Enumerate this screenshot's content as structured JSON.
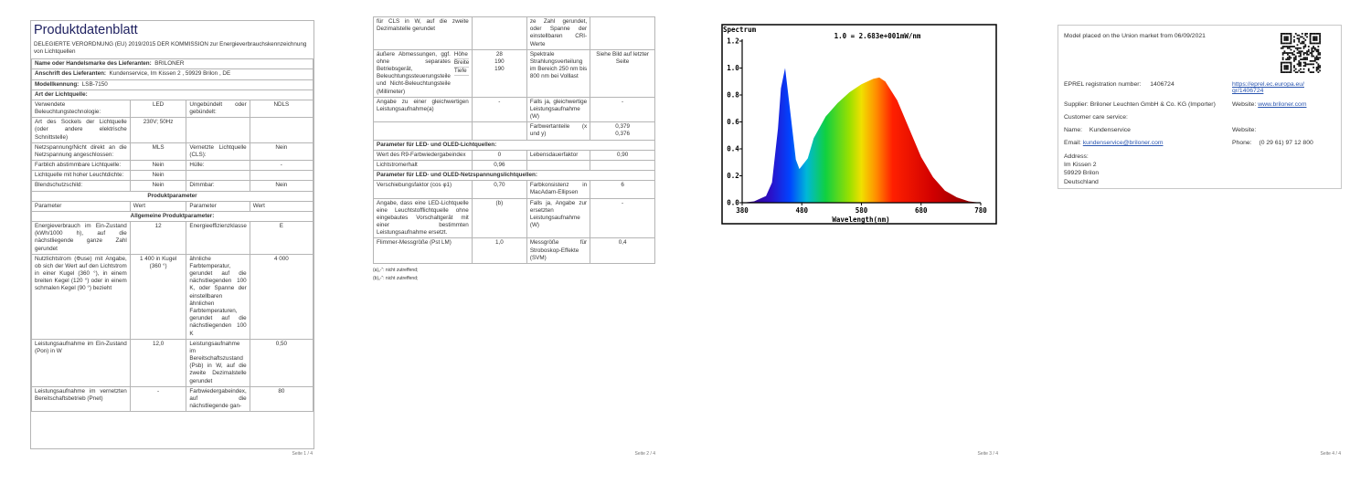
{
  "page1": {
    "title": "Produktdatenblatt",
    "subtitle": "DELEGIERTE VERORDNUNG (EU) 2019/2015 DER KOMMISSION zur Energieverbrauchskennzeichnung von Lichtquellen",
    "rows": [
      {
        "label": "Name oder Handelsmarke des Lieferanten:",
        "value": "BRILONER"
      },
      {
        "label": "Anschrift des Lieferanten:",
        "value": "Kundenservice, Im Kissen 2 , 59929 Brilon , DE"
      },
      {
        "label": "Modellkennung:",
        "value": "LSB-7150"
      },
      {
        "section": "Art der Lichtquelle:"
      },
      {
        "cells": [
          "Verwendete Beleuchtungstechnologie:",
          "LED",
          "Ungebündelt oder gebündelt:",
          "NDLS"
        ]
      },
      {
        "cells": [
          "Art des Sockels der Lichtquelle (oder andere elektrische Schnittstelle)",
          "230V; 50Hz",
          null,
          null
        ]
      },
      {
        "cells": [
          "Netzspannung/Nicht direkt an die Netzspannung angeschlossen:",
          "MLS",
          "Vernetzte Lichtquelle (CLS):",
          "Nein"
        ]
      },
      {
        "cells": [
          "Farblich abstimmbare Lichtquelle:",
          "Nein",
          "Hülle:",
          "-"
        ]
      },
      {
        "cells": [
          "Lichtquelle mit hoher Leuchtdichte:",
          "Nein",
          null,
          null
        ]
      },
      {
        "cells": [
          "Blendschutzschild:",
          "Nein",
          "Dimmbar:",
          "Nein"
        ]
      },
      {
        "heading": "Produktparameter"
      },
      {
        "plain": [
          "Parameter",
          "Wert",
          "Parameter",
          "Wert"
        ]
      },
      {
        "heading": "Allgemeine Produktparameter:"
      },
      {
        "cells": [
          "Energieverbrauch im Ein-Zustand (kWh/1000 h), auf die nächstliegende ganze Zahl gerundet",
          "12",
          "Energieeffizienzklasse",
          "E"
        ]
      },
      {
        "cells": [
          "Nutzlichtstrom (Φuse) mit Angabe, ob sich der Wert auf den Lichtstrom in einer Kugel (360 °), in einem breiten Kegel (120 °) oder in einem schmalen Kegel (90 °) bezieht",
          "1 400 in Kugel (360 °)",
          "ähnliche Farbtemperatur, gerundet auf die nächstliegenden 100 K, oder Spanne der einstellbaren ähnlichen Farbtemperaturen, gerundet auf die nächstliegenden 100 K",
          "4 000"
        ]
      },
      {
        "cells": [
          "Leistungsaufnahme im Ein-Zustand (Pon) in W",
          "12,0",
          "Leistungsaufnahme im Bereitschaftszustand (Psb) in W, auf die zweite Dezimalstelle gerundet",
          "0,50"
        ]
      },
      {
        "cells": [
          "Leistungsaufnahme im vernetzten Bereitschaftsbetrieb (Pnet)",
          "-",
          "Farbwiedergabeindex, auf die nächstliegende gan-",
          "80"
        ]
      }
    ],
    "footer": "Seite 1 / 4"
  },
  "page2": {
    "rows": [
      {
        "cells": [
          "für CLS in W, auf die zweite Dezimalstelle gerundet",
          null,
          "ze Zahl gerundet, oder Spanne der einstellbaren CRI-Werte",
          null
        ]
      },
      {
        "cells": [
          {
            "text": "äußere Abmessungen, ggf. ohne separates Betriebsgerät, Beleuchtungssteuerungsteile und Nicht-Beleuchtungsteile (Millimeter)",
            "items": [
              "Höhe",
              "Breite",
              "Tiefe"
            ]
          },
          [
            "28",
            "190",
            "190"
          ],
          "Spektrale Strahlungsverteilung im Bereich 250 nm bis 800 nm bei Volllast",
          "Siehe Bild auf letzter Seite"
        ]
      },
      {
        "cells": [
          "Angabe zu einer gleichwertigen Leistungsaufnahme(a)",
          "-",
          "Falls ja, gleichwertige Leistungsaufnahme (W)",
          "-"
        ]
      },
      {
        "cells": [
          null,
          null,
          "Farbwertanteile (x und y)",
          [
            "0,379",
            "0,376"
          ]
        ]
      },
      {
        "section": "Parameter für LED- und OLED-Lichtquellen:"
      },
      {
        "cells": [
          "Wert des R9-Farbwiedergabeindex",
          "0",
          "Lebensdauerfaktor",
          "0,90"
        ]
      },
      {
        "cells": [
          "Lichtstromerhalt",
          "0,96",
          null,
          null
        ]
      },
      {
        "section": "Parameter für LED- und OLED-Netzspannungslichtquellen:"
      },
      {
        "cells": [
          "Verschiebungsfaktor (cos φ1)",
          "0,70",
          "Farbkonsistenz in MacAdam-Ellipsen",
          "6"
        ]
      },
      {
        "cells": [
          "Angabe, dass eine LED-Lichtquelle eine Leuchtstofflichtquelle ohne eingebautes Vorschaltgerät mit einer bestimmten Leistungsaufnahme ersetzt.",
          "(b)",
          "Falls ja, Angabe zur ersetzten Leistungsaufnahme (W)",
          "-"
        ]
      },
      {
        "cells": [
          "Flimmer-Messgröße (Pst LM)",
          "1,0",
          "Messgröße für Stroboskop-Effekte (SVM)",
          "0,4"
        ]
      }
    ],
    "notes": [
      "(a)„-“: nicht zutreffend;",
      "(b)„-“: nicht zutreffend;"
    ],
    "footer": "Seite 2 / 4"
  },
  "page3": {
    "chart_data": {
      "type": "area",
      "title": "Spectrum",
      "annotation": "1.0 = 2.683e+001mW/nm",
      "x_label": "Wavelength(nm)",
      "x": [
        380,
        400,
        420,
        430,
        440,
        445,
        452,
        460,
        470,
        476,
        490,
        500,
        520,
        540,
        560,
        580,
        600,
        610,
        620,
        640,
        660,
        680,
        700,
        720,
        740,
        760,
        780
      ],
      "values": [
        0,
        0.01,
        0.05,
        0.15,
        0.55,
        0.85,
        1.0,
        0.7,
        0.32,
        0.25,
        0.33,
        0.48,
        0.64,
        0.74,
        0.82,
        0.88,
        0.92,
        0.93,
        0.9,
        0.76,
        0.55,
        0.34,
        0.19,
        0.09,
        0.04,
        0.01,
        0
      ],
      "xlim": [
        380,
        780
      ],
      "ylim": [
        0,
        1.2
      ],
      "xticks": [
        380,
        480,
        580,
        680,
        780
      ],
      "yticks": [
        {
          "value": 0,
          "label": "0.0"
        },
        0.2,
        0.4,
        0.6,
        0.8,
        {
          "value": 1,
          "label": "1.0"
        },
        1.2
      ]
    },
    "footer": "Seite 3 / 4"
  },
  "page4": {
    "market": "Model placed on the Union market from 06/09/2021",
    "eprel_label": "EPREL registration number:",
    "eprel_number": "1406724",
    "eprel_url": "https://eprel.ec.europa.eu/qr/1406724",
    "supplier_label": "Supplier:",
    "supplier": "Briloner Leuchten GmbH & Co. KG (Importer)",
    "website_label": "Website:",
    "website": "www.briloner.com",
    "care_label": "Customer care service:",
    "name_label": "Name:",
    "name": "Kundenservice",
    "care_website_label": "Website:",
    "email_label": "Email:",
    "email": "kundenservice@briloner.com",
    "phone_label": "Phone:",
    "phone": "(0 29 61) 97 12 800",
    "address_label": "Address:",
    "address": [
      "Im Kissen 2",
      "59929 Brilon",
      "Deutschland"
    ],
    "footer": "Seite 4 / 4"
  }
}
